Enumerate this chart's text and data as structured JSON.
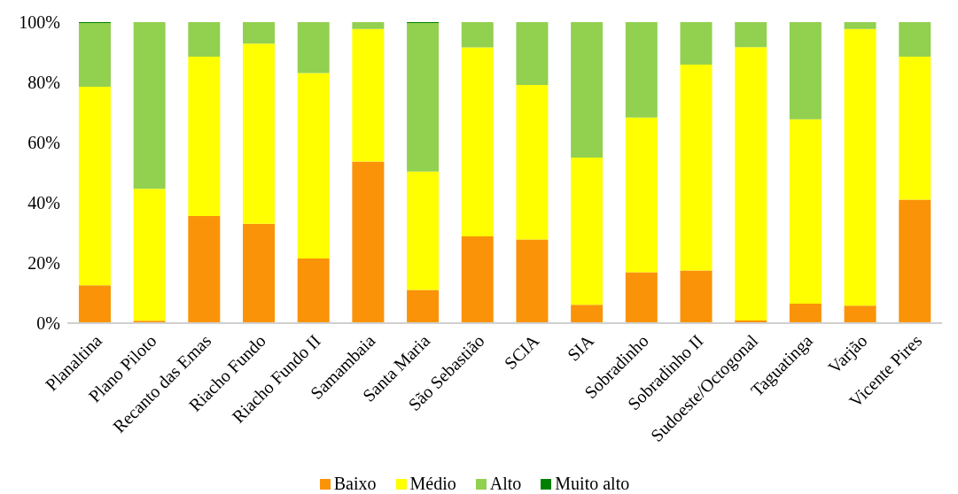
{
  "chart_data": {
    "type": "bar",
    "stacked": true,
    "categories": [
      "Planaltina",
      "Plano Piloto",
      "Recanto das Emas",
      "Riacho Fundo",
      "Riacho Fundo II",
      "Samambaia",
      "Santa Maria",
      "São Sebastião",
      "SCIA",
      "SIA",
      "Sobradinho",
      "Sobradinho II",
      "Sudoeste/Octogonal",
      "Taguatinga",
      "Varjão",
      "Vicente Pires"
    ],
    "series": [
      {
        "name": "Baixo",
        "color": "#fa9308",
        "values": [
          12.6,
          0.8,
          35.6,
          33.0,
          21.5,
          53.7,
          11.0,
          28.8,
          27.8,
          6.1,
          16.9,
          17.5,
          0.9,
          6.5,
          5.8,
          41.0
        ]
      },
      {
        "name": "Médio",
        "color": "#ffff00",
        "values": [
          65.9,
          43.8,
          52.9,
          59.9,
          61.6,
          44.0,
          39.4,
          62.8,
          51.3,
          48.9,
          51.4,
          68.4,
          90.8,
          61.2,
          91.9,
          47.5
        ]
      },
      {
        "name": "Alto",
        "color": "#92d050",
        "values": [
          21.2,
          55.4,
          11.5,
          7.1,
          16.9,
          2.3,
          49.3,
          8.4,
          20.9,
          45.0,
          31.7,
          14.1,
          8.3,
          32.3,
          2.3,
          11.5
        ]
      },
      {
        "name": "Muito alto",
        "color": "#008000",
        "values": [
          0.3,
          null,
          null,
          null,
          null,
          null,
          0.3,
          null,
          null,
          null,
          null,
          null,
          null,
          null,
          null,
          null
        ]
      }
    ],
    "ylim": [
      0,
      100
    ],
    "yticks": [
      {
        "value": 0,
        "label": "0%"
      },
      {
        "value": 20,
        "label": "20%"
      },
      {
        "value": 40,
        "label": "40%"
      },
      {
        "value": 60,
        "label": "60%"
      },
      {
        "value": 80,
        "label": "80%"
      },
      {
        "value": 100,
        "label": "100%"
      }
    ],
    "grid": false,
    "legend": "bottom"
  }
}
